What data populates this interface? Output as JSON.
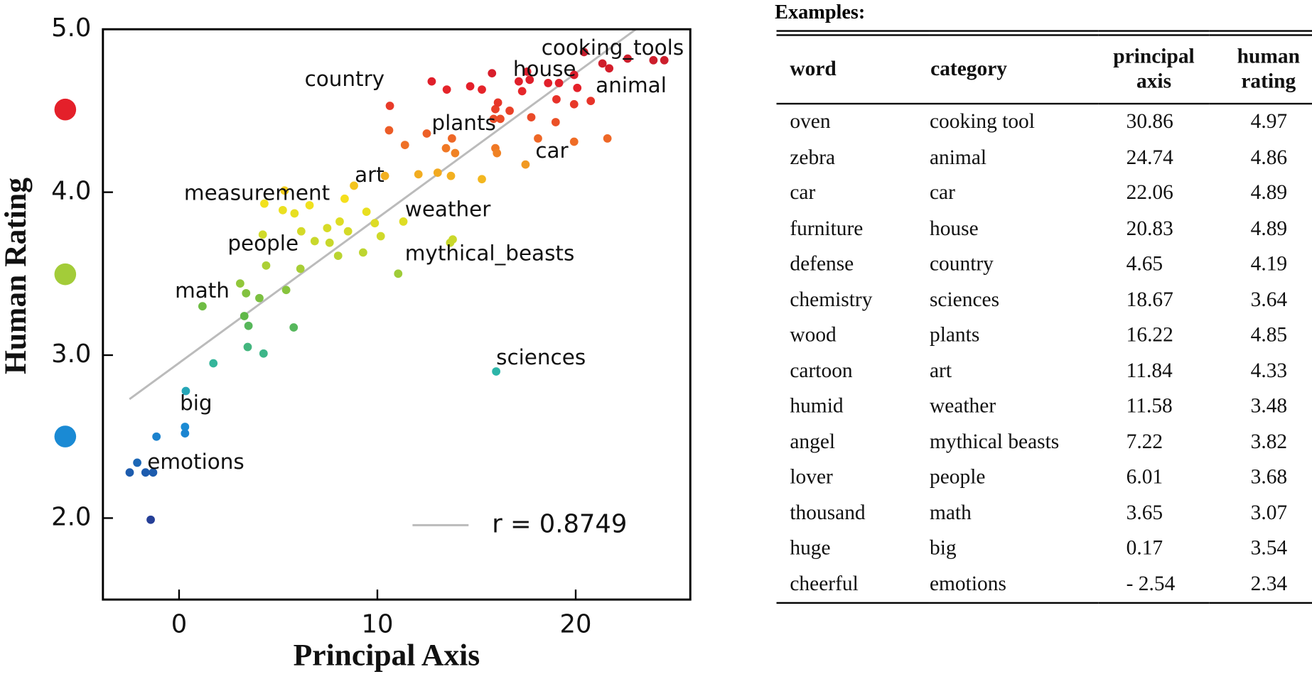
{
  "chart_data": {
    "type": "scatter",
    "xlabel": "Principal Axis",
    "ylabel": "Human Rating",
    "xlim": [
      -3.84,
      25.78
    ],
    "ylim": [
      1.5,
      5.0
    ],
    "xticks": [
      0,
      10,
      20
    ],
    "yticks": [
      {
        "value": 2,
        "label": "2.0"
      },
      {
        "value": 3,
        "label": "3.0"
      },
      {
        "value": 4,
        "label": "4.0"
      },
      {
        "value": 5,
        "label": "5.0"
      }
    ],
    "colormap": [
      "#2a2f86",
      "#2a3590",
      "#1d4fa2",
      "#1b8ad5",
      "#2cb5a8",
      "#62b846",
      "#b8d432",
      "#f5e21c",
      "#ef6e26",
      "#e41f2a",
      "#b01c2e"
    ],
    "x": [
      24.47,
      23.92,
      22.62,
      21.69,
      21.35,
      20.42,
      19.92,
      20.08,
      19.16,
      18.61,
      17.55,
      17.13,
      17.68,
      15.78,
      15.27,
      14.68,
      13.5,
      12.74,
      10.63,
      16.67,
      15.95,
      16.08,
      15.86,
      16.2,
      17.3,
      17.76,
      19.03,
      19.92,
      20.76,
      18.99,
      21.6,
      19.92,
      18.1,
      15.95,
      16.03,
      13.76,
      12.49,
      13.46,
      13.92,
      10.59,
      11.39,
      12.07,
      13.04,
      13.71,
      15.27,
      17.47,
      10.38,
      8.82,
      8.35,
      5.32,
      4.3,
      5.23,
      5.82,
      6.58,
      7.47,
      8.1,
      8.52,
      9.45,
      9.87,
      10.17,
      11.31,
      6.16,
      6.84,
      7.59,
      4.22,
      4.39,
      6.12,
      8.02,
      9.28,
      11.05,
      13.8,
      13.67,
      3.08,
      3.38,
      4.05,
      5.4,
      1.18,
      3.29,
      3.5,
      5.78,
      3.46,
      4.26,
      1.73,
      15.99,
      0.34,
      0.3,
      0.3,
      -1.14,
      -2.11,
      -2.49,
      -1.69,
      -1.31,
      -1.43
    ],
    "values": [
      4.81,
      4.81,
      4.82,
      4.76,
      4.79,
      4.86,
      4.72,
      4.64,
      4.67,
      4.67,
      4.74,
      4.68,
      4.69,
      4.73,
      4.63,
      4.65,
      4.63,
      4.68,
      4.53,
      4.5,
      4.51,
      4.55,
      4.45,
      4.45,
      4.62,
      4.46,
      4.57,
      4.54,
      4.56,
      4.43,
      4.33,
      4.31,
      4.33,
      4.27,
      4.24,
      4.33,
      4.36,
      4.27,
      4.24,
      4.38,
      4.29,
      4.11,
      4.12,
      4.1,
      4.08,
      4.17,
      4.1,
      4.04,
      3.96,
      4.01,
      3.93,
      3.89,
      3.87,
      3.92,
      3.78,
      3.82,
      3.76,
      3.88,
      3.81,
      3.73,
      3.82,
      3.76,
      3.7,
      3.69,
      3.74,
      3.55,
      3.53,
      3.61,
      3.63,
      3.5,
      3.71,
      3.69,
      3.44,
      3.38,
      3.35,
      3.4,
      3.3,
      3.24,
      3.18,
      3.17,
      3.05,
      3.01,
      2.95,
      2.9,
      2.78,
      2.56,
      2.52,
      2.5,
      2.34,
      2.28,
      2.28,
      2.28,
      1.99
    ],
    "fit": {
      "name": "r = 0.8749",
      "color": "#bbbbbb",
      "x": [
        -2.5,
        23.04
      ],
      "y": [
        2.73,
        5.0
      ]
    },
    "annotations": [
      {
        "text": "cooking_tools",
        "x": 18.27,
        "y": 4.88
      },
      {
        "text": "country",
        "x": 6.33,
        "y": 4.69
      },
      {
        "text": "house",
        "x": 16.84,
        "y": 4.75
      },
      {
        "text": "animal",
        "x": 21.01,
        "y": 4.65
      },
      {
        "text": "plants",
        "x": 12.74,
        "y": 4.42
      },
      {
        "text": "car",
        "x": 17.97,
        "y": 4.25
      },
      {
        "text": "art",
        "x": 8.86,
        "y": 4.1
      },
      {
        "text": "measurement",
        "x": 0.25,
        "y": 3.99
      },
      {
        "text": "weather",
        "x": 11.39,
        "y": 3.89
      },
      {
        "text": "people",
        "x": 2.45,
        "y": 3.68
      },
      {
        "text": "mythical_beasts",
        "x": 11.39,
        "y": 3.62
      },
      {
        "text": "math",
        "x": -0.21,
        "y": 3.39
      },
      {
        "text": "sciences",
        "x": 15.99,
        "y": 2.98
      },
      {
        "text": "big",
        "x": 0.04,
        "y": 2.7
      },
      {
        "text": "emotions",
        "x": -1.6,
        "y": 2.34
      }
    ]
  },
  "table": {
    "title": "Examples:",
    "columns": [
      "word",
      "category",
      "principal axis",
      "human rating"
    ],
    "rows": [
      [
        "oven",
        "cooking tool",
        "30.86",
        "4.97"
      ],
      [
        "zebra",
        "animal",
        "24.74",
        "4.86"
      ],
      [
        "car",
        "car",
        "22.06",
        "4.89"
      ],
      [
        "furniture",
        "house",
        "20.83",
        "4.89"
      ],
      [
        "defense",
        "country",
        "4.65",
        "4.19"
      ],
      [
        "chemistry",
        "sciences",
        "18.67",
        "3.64"
      ],
      [
        "wood",
        "plants",
        "16.22",
        "4.85"
      ],
      [
        "cartoon",
        "art",
        "11.84",
        "4.33"
      ],
      [
        "humid",
        "weather",
        "11.58",
        "3.48"
      ],
      [
        "angel",
        "mythical beasts",
        "7.22",
        "3.82"
      ],
      [
        "lover",
        "people",
        "6.01",
        "3.68"
      ],
      [
        "thousand",
        "math",
        "3.65",
        "3.07"
      ],
      [
        "huge",
        "big",
        "0.17",
        "3.54"
      ],
      [
        "cheerful",
        "emotions",
        "- 2.54",
        "2.34"
      ]
    ]
  }
}
